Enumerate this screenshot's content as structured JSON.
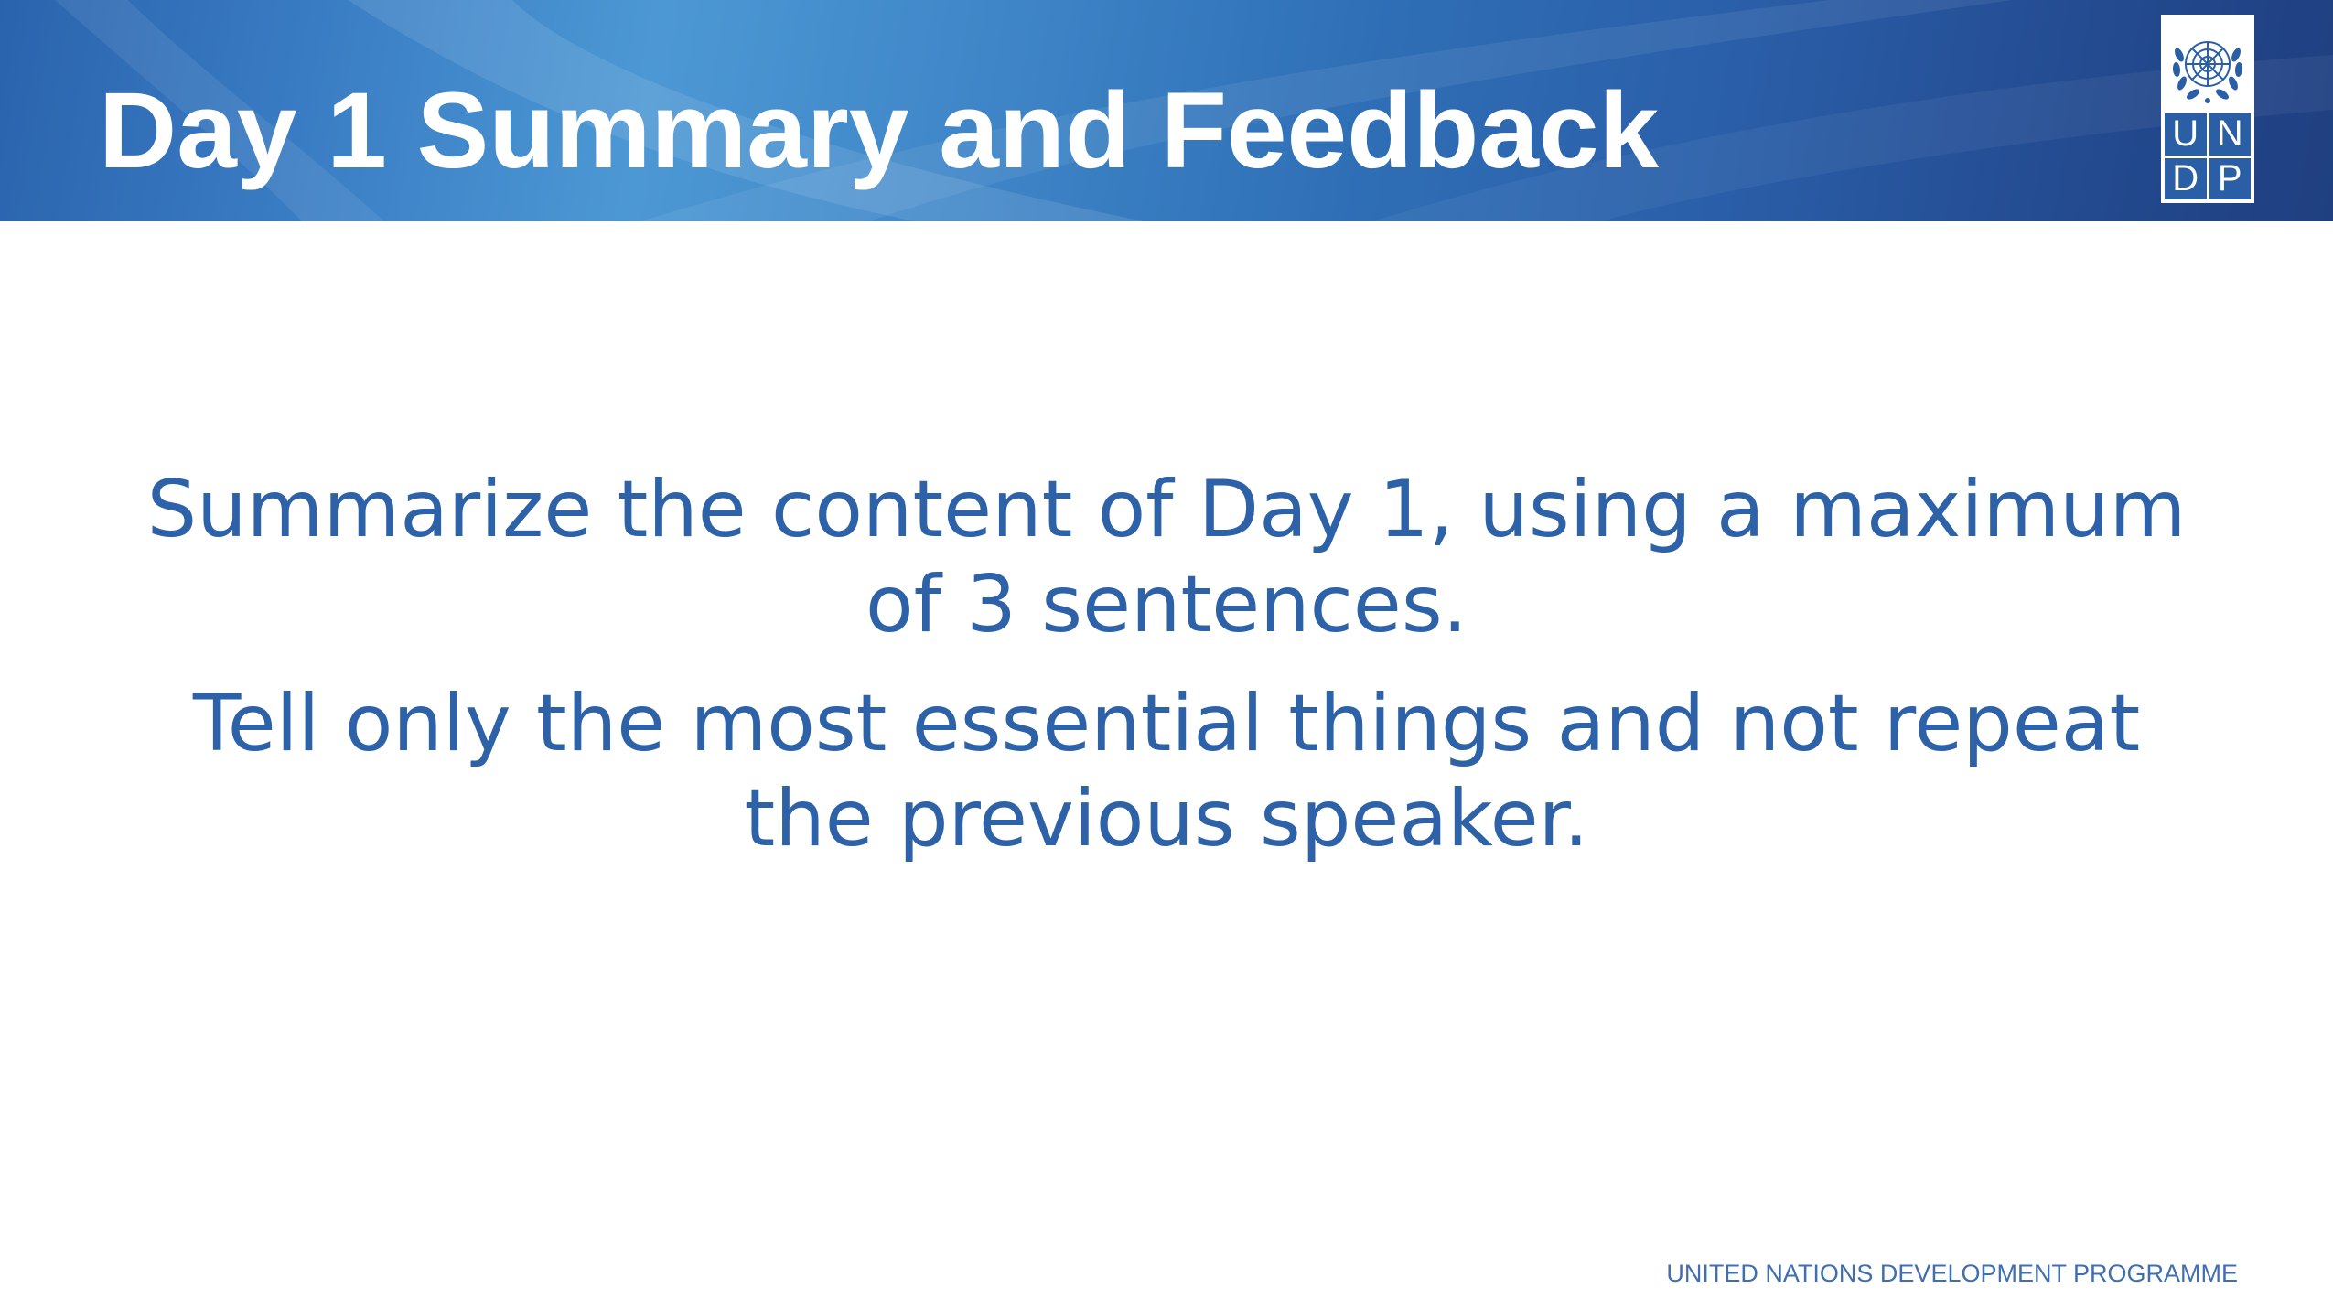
{
  "slide": {
    "title": "Day 1 Summary and Feedback",
    "paragraphs": [
      "Summarize the content of Day 1, using a maximum of 3 sentences.",
      "Tell only the most essential things and not repeat the previous speaker."
    ],
    "footer": "UNITED NATIONS DEVELOPMENT PROGRAMME"
  },
  "logo": {
    "letters": [
      "U",
      "N",
      "D",
      "P"
    ],
    "icon": "un-emblem-icon"
  },
  "colors": {
    "header_blue": "#2f6fb6",
    "text_blue": "#2e62a8",
    "logo_blue": "#2a5fa6",
    "title_white": "#ffffff"
  }
}
